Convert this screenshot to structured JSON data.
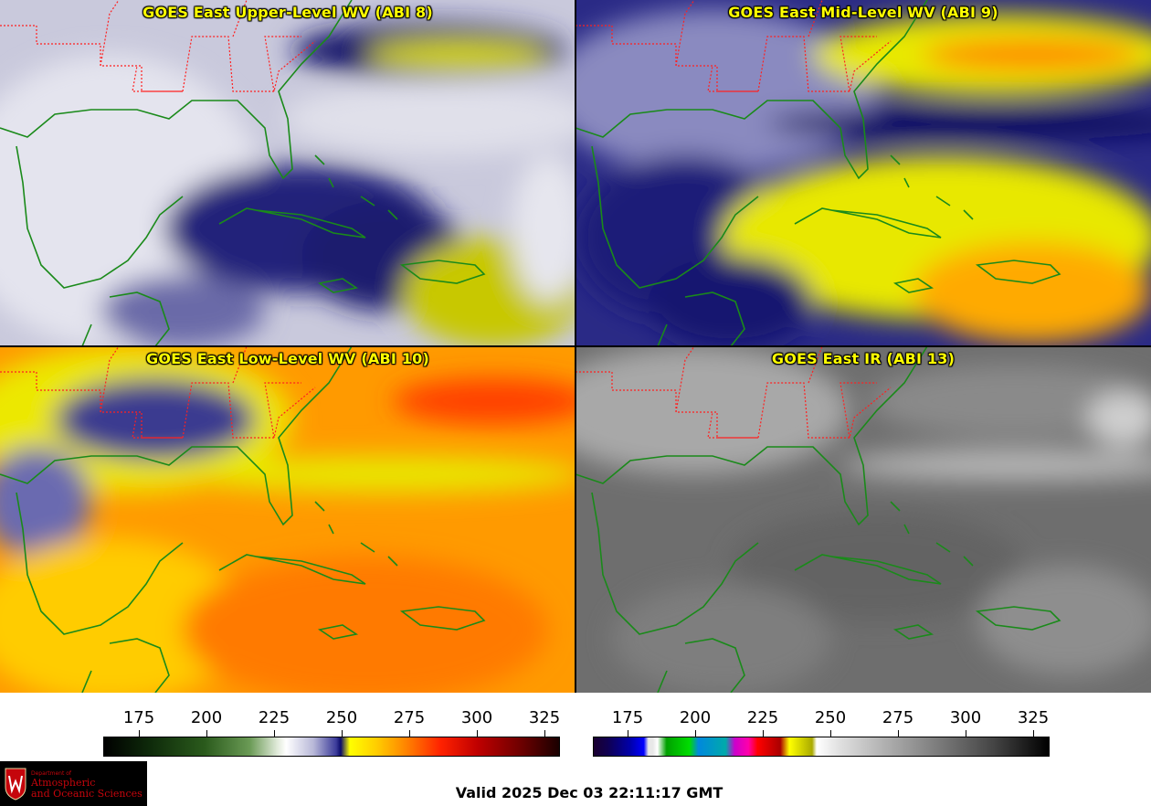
{
  "panels": [
    {
      "title": "GOES East Upper-Level WV (ABI 8)"
    },
    {
      "title": "GOES East Mid-Level WV (ABI 9)"
    },
    {
      "title": "GOES East Low-Level WV (ABI 10)"
    },
    {
      "title": "GOES East IR (ABI 13)"
    }
  ],
  "colorbar_left": {
    "ticks": [
      "175",
      "200",
      "225",
      "250",
      "275",
      "300",
      "325"
    ]
  },
  "colorbar_right": {
    "ticks": [
      "175",
      "200",
      "225",
      "250",
      "275",
      "300",
      "325"
    ]
  },
  "logo": {
    "department": "Department of",
    "line1": "Atmospheric",
    "line2": "and Oceanic Sciences"
  },
  "valid_time": "Valid 2025 Dec 03 22:11:17 GMT",
  "colors": {
    "title": "#ffff00",
    "state_borders": "#ff2020",
    "coastline": "#1a8a1a",
    "logo_red": "#c5050c"
  }
}
